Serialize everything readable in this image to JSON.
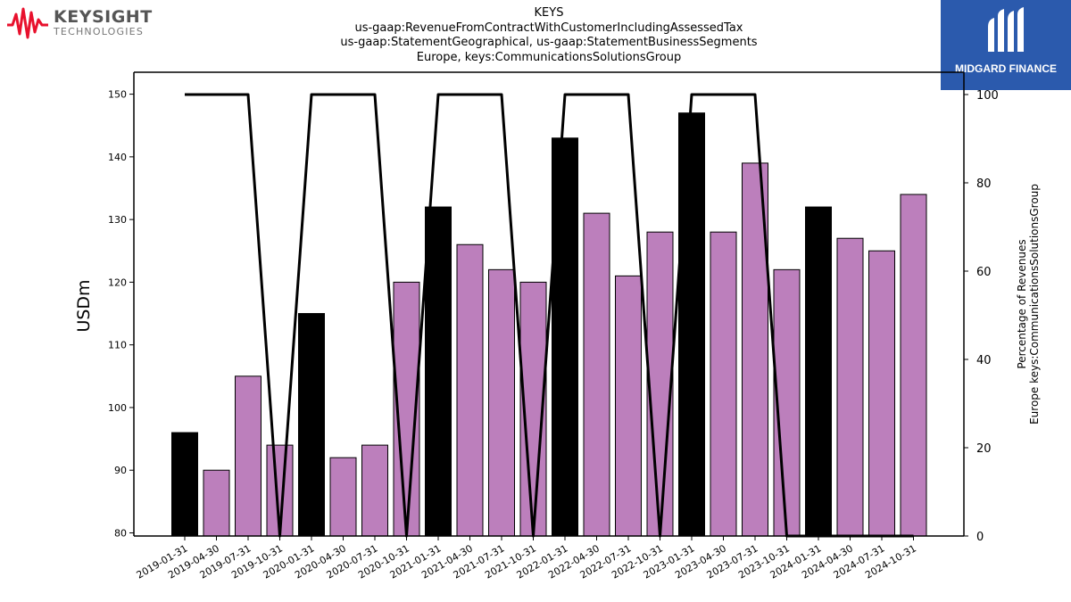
{
  "header": {
    "title_lines": [
      "KEYS",
      "us-gaap:RevenueFromContractWithCustomerIncludingAssessedTax",
      "us-gaap:StatementGeographical, us-gaap:StatementBusinessSegments",
      "Europe, keys:CommunicationsSolutionsGroup"
    ]
  },
  "logos": {
    "left": {
      "brand": "KEYSIGHT",
      "sub": "TECHNOLOGIES",
      "color": "#e8112d"
    },
    "right": {
      "text": "MIDGARD FINANCE",
      "bg": "#2b5aad"
    }
  },
  "chart_data": {
    "type": "bar",
    "categories": [
      "2019-01-31",
      "2019-04-30",
      "2019-07-31",
      "2019-10-31",
      "2020-01-31",
      "2020-04-30",
      "2020-07-31",
      "2020-10-31",
      "2021-01-31",
      "2021-04-30",
      "2021-07-31",
      "2021-10-31",
      "2022-01-31",
      "2022-04-30",
      "2022-07-31",
      "2022-10-31",
      "2023-01-31",
      "2023-04-30",
      "2023-07-31",
      "2023-10-31",
      "2024-01-31",
      "2024-04-30",
      "2024-07-31",
      "2024-10-31"
    ],
    "series": [
      {
        "values": [
          96,
          90,
          105,
          94,
          115,
          92,
          94,
          120,
          132,
          126,
          122,
          120,
          143,
          131,
          121,
          128,
          147,
          128,
          139,
          122,
          132,
          127,
          125,
          134
        ],
        "axis": "left"
      },
      {
        "type": "line",
        "values": [
          100,
          100,
          100,
          0,
          100,
          100,
          100,
          0,
          100,
          100,
          100,
          0,
          100,
          100,
          100,
          0,
          100,
          100,
          100,
          0,
          0,
          0,
          0,
          0
        ],
        "axis": "right",
        "color": "#000000"
      }
    ],
    "highlight_color": "#000000",
    "bar_color": "#bc7fbc",
    "highlight_indices": [
      0,
      4,
      8,
      12,
      16,
      20
    ],
    "ylabel": "USDm",
    "ylim": [
      79.5,
      153.5
    ],
    "yticks": [
      80,
      90,
      100,
      110,
      120,
      130,
      140,
      150
    ],
    "y2label": [
      "Percentage of Revenues",
      "Europe keys:CommunicationsSolutionsGroup"
    ],
    "y2lim": [
      0,
      105
    ],
    "y2ticks": [
      0,
      20,
      40,
      60,
      80,
      100
    ],
    "grid": false
  }
}
